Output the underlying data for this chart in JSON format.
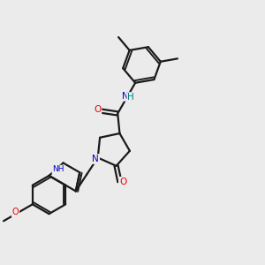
{
  "bg_color": "#ebebeb",
  "line_color": "#1a1a1a",
  "bond_width": 1.6,
  "atom_colors": {
    "N": "#0000cc",
    "O": "#ee0000",
    "NH_teal": "#008080"
  },
  "figsize": [
    3.0,
    3.0
  ],
  "dpi": 100
}
